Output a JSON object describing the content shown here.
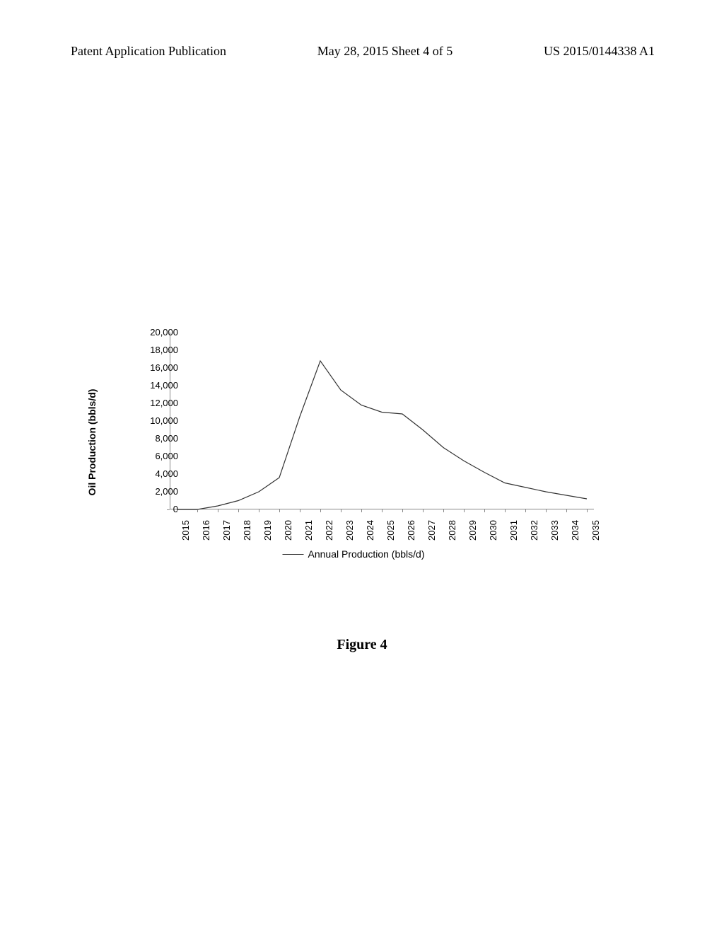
{
  "header": {
    "left": "Patent Application Publication",
    "center": "May 28, 2015  Sheet 4 of 5",
    "right": "US 2015/0144338 A1"
  },
  "chart": {
    "type": "line",
    "ylabel": "Oil Production (bbls/d)",
    "ylabel_fontsize": 14,
    "ylabel_fontweight": "bold",
    "ylim": [
      0,
      20000
    ],
    "ytick_step": 2000,
    "ytick_labels": [
      "0",
      "2,000",
      "4,000",
      "6,000",
      "8,000",
      "10,000",
      "12,000",
      "14,000",
      "16,000",
      "18,000",
      "20,000"
    ],
    "xlabels": [
      "2015",
      "2016",
      "2017",
      "2018",
      "2019",
      "2020",
      "2021",
      "2022",
      "2023",
      "2024",
      "2025",
      "2026",
      "2027",
      "2028",
      "2029",
      "2030",
      "2031",
      "2032",
      "2033",
      "2034",
      "2035"
    ],
    "values": [
      0,
      0,
      400,
      1000,
      2000,
      3600,
      10500,
      16800,
      13500,
      11800,
      11000,
      10800,
      9000,
      7000,
      5500,
      4200,
      3000,
      2500,
      2000,
      1600,
      1200
    ],
    "line_color": "#333333",
    "line_width": 1.2,
    "background_color": "#ffffff",
    "axis_color": "#888888",
    "tick_fontsize": 13,
    "x_tick_rotation": -90
  },
  "legend": {
    "label": "Annual Production (bbls/d)",
    "line_color": "#333333"
  },
  "caption": "Figure 4"
}
